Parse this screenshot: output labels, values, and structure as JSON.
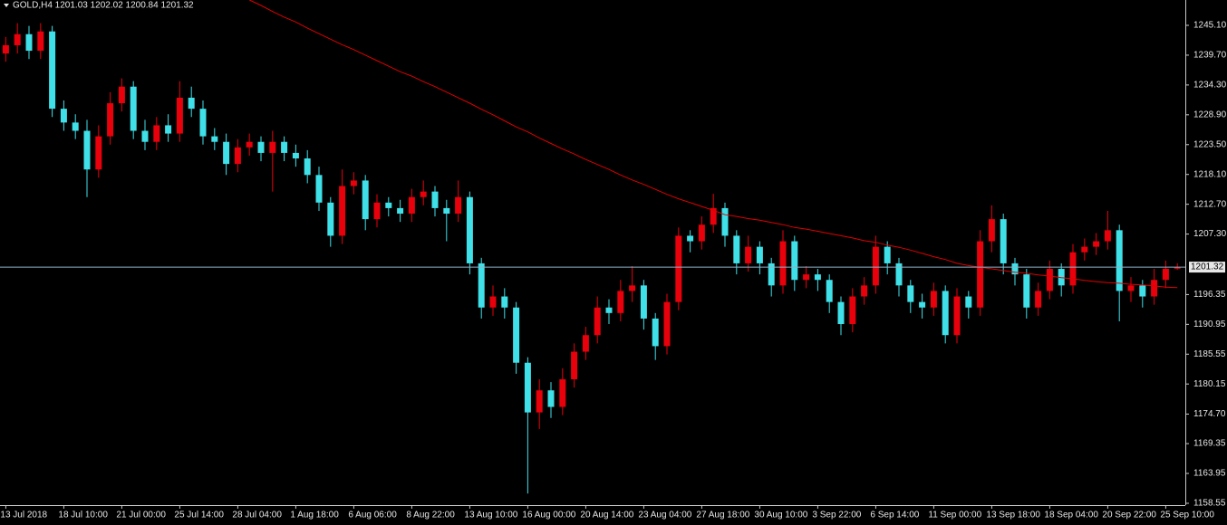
{
  "chart_data": {
    "type": "candlestick",
    "title": "GOLD,H4  1201.03 1202.02 1200.84 1201.32",
    "up_color": "#e8000b",
    "down_color": "#3fe0e8",
    "categories": [
      "13 Jul 2018",
      null,
      null,
      null,
      null,
      "18 Jul 10:00",
      null,
      null,
      null,
      null,
      "21 Jul 00:00",
      null,
      null,
      null,
      null,
      "25 Jul 14:00",
      null,
      null,
      null,
      null,
      "28 Jul 04:00",
      null,
      null,
      null,
      null,
      "1 Aug 18:00",
      null,
      null,
      null,
      null,
      "6 Aug 06:00",
      null,
      null,
      null,
      null,
      "8 Aug 22:00",
      null,
      null,
      null,
      null,
      "13 Aug 10:00",
      null,
      null,
      null,
      null,
      "16 Aug 00:00",
      null,
      null,
      null,
      null,
      "20 Aug 14:00",
      null,
      null,
      null,
      null,
      "23 Aug 04:00",
      null,
      null,
      null,
      null,
      "27 Aug 18:00",
      null,
      null,
      null,
      null,
      "30 Aug 10:00",
      null,
      null,
      null,
      null,
      "3 Sep 22:00",
      null,
      null,
      null,
      null,
      "6 Sep 14:00",
      null,
      null,
      null,
      null,
      "11 Sep 00:00",
      null,
      null,
      null,
      null,
      "13 Sep 18:00",
      null,
      null,
      null,
      null,
      "18 Sep 04:00",
      null,
      null,
      null,
      null,
      "20 Sep 22:00",
      null,
      null,
      null,
      null,
      "25 Sep 10:00",
      null
    ],
    "open": [
      1240,
      1241.5,
      1243.5,
      1240.5,
      1244,
      1230,
      1227.5,
      1226,
      1219,
      1225,
      1231,
      1234,
      1226,
      1224,
      1227,
      1225.5,
      1232,
      1230,
      1225,
      1224,
      1220,
      1223,
      1224,
      1222,
      1224,
      1222,
      1221,
      1218,
      1213,
      1207,
      1216,
      1217,
      1210,
      1213,
      1212,
      1211,
      1214,
      1215,
      1212,
      1211,
      1214,
      1202,
      1194,
      1196,
      1194,
      1184,
      1175,
      1179,
      1176,
      1181,
      1186,
      1189,
      1194,
      1193,
      1197,
      1198,
      1192,
      1187,
      1195,
      1207,
      1206,
      1209,
      1212,
      1207,
      1202,
      1205,
      1202,
      1198,
      1206,
      1199,
      1200,
      1199,
      1195,
      1191,
      1196,
      1198,
      1205,
      1202,
      1198,
      1195,
      1194,
      1197,
      1189,
      1196,
      1194,
      1206,
      1210,
      1202,
      1200,
      1194,
      1197,
      1201,
      1198,
      1204,
      1205,
      1206,
      1208,
      1197,
      1198,
      1196,
      1199,
      1201.03
    ],
    "high": [
      1243,
      1245.5,
      1245,
      1245.5,
      1245,
      1231.5,
      1229,
      1228,
      1227,
      1233,
      1235.5,
      1235,
      1228,
      1228.5,
      1229,
      1235,
      1234,
      1231.5,
      1226.5,
      1225.5,
      1224.5,
      1225.5,
      1225,
      1226,
      1225,
      1223.5,
      1222.5,
      1219.5,
      1214,
      1219,
      1218.5,
      1218,
      1214.5,
      1214,
      1213.5,
      1215.5,
      1217,
      1216,
      1213.5,
      1217,
      1215,
      1203,
      1198,
      1197.5,
      1195,
      1185,
      1181,
      1180.5,
      1183,
      1187.5,
      1190.5,
      1196,
      1195.5,
      1199,
      1201.5,
      1199,
      1193,
      1196.5,
      1208.5,
      1208,
      1210.5,
      1214.6,
      1213,
      1208,
      1207,
      1206,
      1203,
      1208,
      1207,
      1201.5,
      1201,
      1200,
      1196,
      1197.5,
      1199.5,
      1207,
      1206,
      1203,
      1199,
      1196.5,
      1198.5,
      1198,
      1197.5,
      1197,
      1208,
      1212.5,
      1211,
      1203,
      1201,
      1198.5,
      1202.5,
      1202,
      1205.5,
      1206.5,
      1207.5,
      1211.5,
      1209,
      1199.5,
      1199,
      1201,
      1202.5,
      1202.02
    ],
    "low": [
      1238.5,
      1240,
      1239,
      1239,
      1228.5,
      1226,
      1224.5,
      1214,
      1217.5,
      1223.5,
      1229.5,
      1224.5,
      1222.5,
      1222.5,
      1224,
      1224,
      1228.5,
      1223.5,
      1222.5,
      1218,
      1218.5,
      1221.5,
      1220.5,
      1215,
      1220.5,
      1219.5,
      1216.5,
      1211.5,
      1205,
      1205.5,
      1214.5,
      1208,
      1208.5,
      1210.5,
      1209.5,
      1209.5,
      1212.5,
      1210.5,
      1206,
      1209.5,
      1200,
      1192,
      1192.5,
      1192,
      1182,
      1160.3,
      1172,
      1174,
      1174.5,
      1179.5,
      1184.5,
      1187.5,
      1191,
      1191.5,
      1195,
      1190,
      1184.5,
      1185.5,
      1193.5,
      1204,
      1204.5,
      1207.5,
      1205,
      1200,
      1200.5,
      1200,
      1196,
      1196.5,
      1197,
      1197.5,
      1197,
      1193,
      1189,
      1189.5,
      1194.5,
      1196.5,
      1200,
      1196,
      1193,
      1192,
      1192.5,
      1187.5,
      1187.5,
      1192,
      1192.5,
      1204,
      1200,
      1198,
      1192,
      1192.5,
      1195.5,
      1196,
      1196.5,
      1202.5,
      1203.5,
      1204.5,
      1191.5,
      1195,
      1194,
      1194.5,
      1197.5,
      1200.84
    ],
    "close": [
      1241.5,
      1243.5,
      1240.5,
      1244,
      1230,
      1227.5,
      1226,
      1219,
      1225,
      1231,
      1234,
      1226,
      1224,
      1227,
      1225.5,
      1232,
      1230,
      1225,
      1224,
      1220,
      1223,
      1224,
      1222,
      1224,
      1222,
      1221,
      1218,
      1213,
      1207,
      1216,
      1217,
      1210,
      1213,
      1212,
      1211,
      1214,
      1215,
      1212,
      1211,
      1214,
      1202,
      1194,
      1196,
      1194,
      1184,
      1175,
      1179,
      1176,
      1181,
      1186,
      1189,
      1194,
      1193,
      1197,
      1198,
      1192,
      1187,
      1195,
      1207,
      1206,
      1209,
      1212,
      1207,
      1202,
      1205,
      1202,
      1198,
      1206,
      1199,
      1200,
      1199,
      1195,
      1191,
      1196,
      1198,
      1205,
      1202,
      1198,
      1195,
      1194,
      1197,
      1189,
      1196,
      1194,
      1206,
      1210,
      1202,
      1200,
      1194,
      1197,
      1201,
      1198,
      1204,
      1205,
      1206,
      1208,
      1197,
      1198,
      1196,
      1199,
      1201.03,
      1201.32
    ],
    "moving_average": {
      "color": "#e00000",
      "values": [
        null,
        null,
        null,
        null,
        null,
        null,
        null,
        null,
        null,
        null,
        null,
        null,
        null,
        null,
        null,
        null,
        null,
        null,
        null,
        null,
        null,
        1249.7,
        1248.7,
        1247.6,
        1246.6,
        1245.7,
        1244.6,
        1243.6,
        1242.6,
        1241.6,
        1240.7,
        1239.7,
        1238.7,
        1237.7,
        1236.7,
        1235.9,
        1234.9,
        1234.0,
        1233.0,
        1232.0,
        1231.0,
        1229.9,
        1228.9,
        1227.8,
        1226.7,
        1225.8,
        1224.7,
        1223.7,
        1222.7,
        1221.8,
        1220.8,
        1219.9,
        1219.0,
        1218.0,
        1217.1,
        1216.3,
        1215.4,
        1214.5,
        1213.7,
        1213.0,
        1212.3,
        1211.6,
        1210.8,
        1210.5,
        1210.1,
        1209.8,
        1209.4,
        1209.0,
        1208.5,
        1208.2,
        1207.8,
        1207.4,
        1207.0,
        1206.6,
        1206.1,
        1205.8,
        1205.3,
        1204.9,
        1204.4,
        1203.8,
        1203.2,
        1202.7,
        1202.0,
        1201.6,
        1201.3,
        1201.0,
        1200.7,
        1200.4,
        1200.2,
        1199.9,
        1199.7,
        1199.4,
        1199.2,
        1198.9,
        1198.7,
        1198.5,
        1198.4,
        1198.2,
        1198.1,
        1197.9,
        1197.7,
        1197.6
      ]
    },
    "price_line": {
      "value": 1201.32,
      "color": "#8fb3c9"
    },
    "ylim": [
      1158.22,
      1249.69
    ],
    "yticks": [
      {
        "value": 1245.1,
        "label": "1245.10"
      },
      {
        "value": 1239.7,
        "label": "1239.70"
      },
      {
        "value": 1234.3,
        "label": "1234.30"
      },
      {
        "value": 1228.9,
        "label": "1228.90"
      },
      {
        "value": 1223.5,
        "label": "1223.50"
      },
      {
        "value": 1218.1,
        "label": "1218.10"
      },
      {
        "value": 1212.7,
        "label": "1212.70"
      },
      {
        "value": 1207.3,
        "label": "1207.30"
      },
      1196.35,
      1190.95,
      1185.55,
      1180.15,
      {
        "value": 1174.7,
        "label": "1174.70"
      },
      1169.35,
      1163.95,
      1158.55
    ]
  }
}
